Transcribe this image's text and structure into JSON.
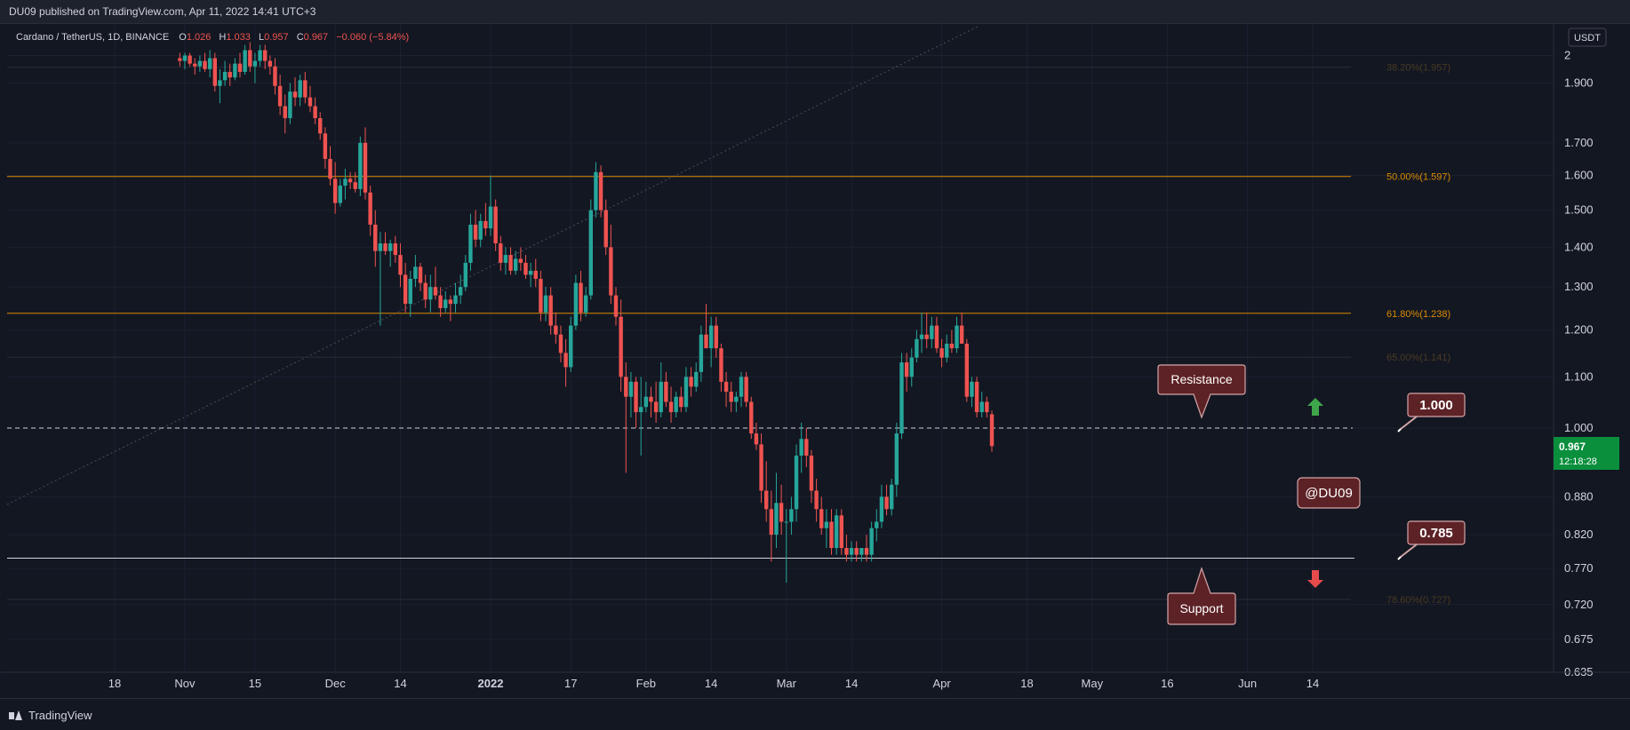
{
  "header": {
    "published": "DU09 published on TradingView.com, Apr 11, 2022 14:41 UTC+3"
  },
  "legend": {
    "symbol": "Cardano / TetherUS, 1D, BINANCE",
    "o_label": "O",
    "o_value": "1.026",
    "h_label": "H",
    "h_value": "1.033",
    "l_label": "L",
    "l_value": "0.957",
    "c_label": "C",
    "c_value": "0.967",
    "change": "−0.060 (−5.84%)"
  },
  "axis": {
    "currency": "USDT",
    "price_badge": "0.967",
    "countdown": "12:18:28"
  },
  "footer": {
    "brand": "TradingView"
  },
  "colors": {
    "background": "#131722",
    "up": "#26a69a",
    "down": "#ef5350",
    "fib": "#d98b00",
    "annotation_bg": "#5d2226",
    "annotation_border": "#d4a5a8",
    "badge_green": "#0a8f3d"
  },
  "chart_data": {
    "type": "candlestick",
    "scale": "log",
    "ylim": [
      0.635,
      2.0
    ],
    "x_ticks": [
      "18",
      "Nov",
      "15",
      "Dec",
      "14",
      "2022",
      "17",
      "Feb",
      "14",
      "Mar",
      "14",
      "Apr",
      "18",
      "May",
      "16",
      "Jun",
      "14"
    ],
    "y_ticks": [
      "2",
      "1.900",
      "1.700",
      "1.600",
      "1.500",
      "1.400",
      "1.300",
      "1.200",
      "1.100",
      "1.000",
      "0.880",
      "0.820",
      "0.770",
      "0.720",
      "0.675",
      "0.635"
    ],
    "levels": [
      {
        "label": "38.20%(1.957)",
        "value": 1.957
      },
      {
        "label": "50.00%(1.597)",
        "value": 1.597
      },
      {
        "label": "61.80%(1.238)",
        "value": 1.238
      },
      {
        "label": "65.00%(1.141)",
        "value": 1.141
      },
      {
        "label": "78.60%(0.727)",
        "value": 0.727
      }
    ],
    "horizontal_lines": [
      {
        "value": 1.0,
        "style": "dashed"
      },
      {
        "value": 0.785,
        "style": "solid"
      }
    ],
    "annotations": [
      {
        "text": "Resistance",
        "type": "callout"
      },
      {
        "text": "Support",
        "type": "callout"
      },
      {
        "text": "1.000",
        "type": "price-label"
      },
      {
        "text": "0.785",
        "type": "price-label"
      },
      {
        "text": "@DU09",
        "type": "label"
      }
    ],
    "first_date": "2021-10-25",
    "last_date": "2022-04-11",
    "candles": [
      [
        1.99,
        2.01,
        1.96,
        1.98
      ],
      [
        1.98,
        2.01,
        1.95,
        2.0
      ],
      [
        2.0,
        2.01,
        1.96,
        1.97
      ],
      [
        1.97,
        1.99,
        1.93,
        1.96
      ],
      [
        1.96,
        2.0,
        1.94,
        1.98
      ],
      [
        1.98,
        2.01,
        1.94,
        1.95
      ],
      [
        1.95,
        2.02,
        1.92,
        1.99
      ],
      [
        1.99,
        2.01,
        1.87,
        1.89
      ],
      [
        1.89,
        1.95,
        1.83,
        1.91
      ],
      [
        1.91,
        1.98,
        1.89,
        1.94
      ],
      [
        1.94,
        1.97,
        1.89,
        1.92
      ],
      [
        1.92,
        1.99,
        1.91,
        1.97
      ],
      [
        1.97,
        2.01,
        1.92,
        1.94
      ],
      [
        1.94,
        2.04,
        1.93,
        2.02
      ],
      [
        2.02,
        2.05,
        1.94,
        1.96
      ],
      [
        1.96,
        2.01,
        1.9,
        1.98
      ],
      [
        1.98,
        2.04,
        1.96,
        2.02
      ],
      [
        2.02,
        2.04,
        1.95,
        1.98
      ],
      [
        1.98,
        2.0,
        1.93,
        1.96
      ],
      [
        1.96,
        1.99,
        1.86,
        1.89
      ],
      [
        1.89,
        1.93,
        1.79,
        1.82
      ],
      [
        1.82,
        1.86,
        1.73,
        1.78
      ],
      [
        1.78,
        1.9,
        1.76,
        1.87
      ],
      [
        1.87,
        1.92,
        1.82,
        1.85
      ],
      [
        1.85,
        1.93,
        1.82,
        1.91
      ],
      [
        1.91,
        1.94,
        1.83,
        1.85
      ],
      [
        1.85,
        1.89,
        1.8,
        1.82
      ],
      [
        1.82,
        1.85,
        1.76,
        1.78
      ],
      [
        1.78,
        1.8,
        1.71,
        1.73
      ],
      [
        1.73,
        1.75,
        1.62,
        1.65
      ],
      [
        1.65,
        1.69,
        1.57,
        1.59
      ],
      [
        1.59,
        1.64,
        1.49,
        1.52
      ],
      [
        1.52,
        1.59,
        1.51,
        1.57
      ],
      [
        1.57,
        1.62,
        1.53,
        1.59
      ],
      [
        1.59,
        1.61,
        1.56,
        1.58
      ],
      [
        1.58,
        1.61,
        1.55,
        1.56
      ],
      [
        1.56,
        1.72,
        1.54,
        1.7
      ],
      [
        1.7,
        1.75,
        1.53,
        1.55
      ],
      [
        1.55,
        1.57,
        1.43,
        1.46
      ],
      [
        1.46,
        1.5,
        1.35,
        1.39
      ],
      [
        1.39,
        1.44,
        1.21,
        1.41
      ],
      [
        1.41,
        1.44,
        1.38,
        1.39
      ],
      [
        1.39,
        1.42,
        1.35,
        1.41
      ],
      [
        1.41,
        1.43,
        1.36,
        1.38
      ],
      [
        1.38,
        1.41,
        1.3,
        1.33
      ],
      [
        1.33,
        1.36,
        1.24,
        1.26
      ],
      [
        1.26,
        1.34,
        1.23,
        1.32
      ],
      [
        1.32,
        1.38,
        1.3,
        1.35
      ],
      [
        1.35,
        1.36,
        1.29,
        1.31
      ],
      [
        1.31,
        1.33,
        1.25,
        1.27
      ],
      [
        1.27,
        1.33,
        1.24,
        1.3
      ],
      [
        1.3,
        1.35,
        1.27,
        1.28
      ],
      [
        1.28,
        1.3,
        1.23,
        1.25
      ],
      [
        1.25,
        1.29,
        1.24,
        1.27
      ],
      [
        1.27,
        1.28,
        1.22,
        1.26
      ],
      [
        1.26,
        1.31,
        1.24,
        1.28
      ],
      [
        1.28,
        1.33,
        1.26,
        1.3
      ],
      [
        1.3,
        1.38,
        1.29,
        1.36
      ],
      [
        1.36,
        1.49,
        1.34,
        1.46
      ],
      [
        1.46,
        1.5,
        1.4,
        1.42
      ],
      [
        1.42,
        1.49,
        1.4,
        1.47
      ],
      [
        1.47,
        1.52,
        1.43,
        1.45
      ],
      [
        1.45,
        1.6,
        1.43,
        1.51
      ],
      [
        1.51,
        1.53,
        1.39,
        1.41
      ],
      [
        1.41,
        1.43,
        1.34,
        1.36
      ],
      [
        1.36,
        1.4,
        1.33,
        1.38
      ],
      [
        1.38,
        1.4,
        1.33,
        1.34
      ],
      [
        1.34,
        1.39,
        1.33,
        1.37
      ],
      [
        1.37,
        1.4,
        1.34,
        1.36
      ],
      [
        1.36,
        1.38,
        1.32,
        1.33
      ],
      [
        1.33,
        1.36,
        1.3,
        1.34
      ],
      [
        1.34,
        1.37,
        1.3,
        1.32
      ],
      [
        1.32,
        1.34,
        1.22,
        1.24
      ],
      [
        1.24,
        1.3,
        1.22,
        1.28
      ],
      [
        1.28,
        1.3,
        1.19,
        1.21
      ],
      [
        1.21,
        1.24,
        1.17,
        1.19
      ],
      [
        1.19,
        1.21,
        1.13,
        1.15
      ],
      [
        1.15,
        1.18,
        1.08,
        1.12
      ],
      [
        1.12,
        1.23,
        1.11,
        1.21
      ],
      [
        1.21,
        1.33,
        1.2,
        1.31
      ],
      [
        1.31,
        1.34,
        1.22,
        1.24
      ],
      [
        1.24,
        1.3,
        1.23,
        1.28
      ],
      [
        1.28,
        1.53,
        1.27,
        1.5
      ],
      [
        1.5,
        1.64,
        1.48,
        1.61
      ],
      [
        1.61,
        1.63,
        1.48,
        1.5
      ],
      [
        1.5,
        1.53,
        1.38,
        1.4
      ],
      [
        1.4,
        1.46,
        1.26,
        1.28
      ],
      [
        1.28,
        1.3,
        1.21,
        1.23
      ],
      [
        1.23,
        1.27,
        1.07,
        1.1
      ],
      [
        1.1,
        1.13,
        0.92,
        1.06
      ],
      [
        1.06,
        1.11,
        1.02,
        1.09
      ],
      [
        1.09,
        1.1,
        1.0,
        1.03
      ],
      [
        1.03,
        1.1,
        0.95,
        1.04
      ],
      [
        1.04,
        1.09,
        1.03,
        1.06
      ],
      [
        1.06,
        1.08,
        1.02,
        1.05
      ],
      [
        1.05,
        1.09,
        1.01,
        1.03
      ],
      [
        1.03,
        1.13,
        1.02,
        1.09
      ],
      [
        1.09,
        1.11,
        1.04,
        1.05
      ],
      [
        1.05,
        1.08,
        1.01,
        1.03
      ],
      [
        1.03,
        1.07,
        1.02,
        1.06
      ],
      [
        1.06,
        1.08,
        1.03,
        1.04
      ],
      [
        1.04,
        1.12,
        1.03,
        1.1
      ],
      [
        1.1,
        1.12,
        1.06,
        1.08
      ],
      [
        1.08,
        1.13,
        1.07,
        1.11
      ],
      [
        1.11,
        1.21,
        1.09,
        1.19
      ],
      [
        1.19,
        1.26,
        1.16,
        1.16
      ],
      [
        1.16,
        1.23,
        1.12,
        1.21
      ],
      [
        1.21,
        1.23,
        1.14,
        1.16
      ],
      [
        1.16,
        1.17,
        1.07,
        1.09
      ],
      [
        1.09,
        1.11,
        1.04,
        1.07
      ],
      [
        1.07,
        1.09,
        1.03,
        1.05
      ],
      [
        1.05,
        1.07,
        1.03,
        1.06
      ],
      [
        1.06,
        1.11,
        1.04,
        1.1
      ],
      [
        1.1,
        1.11,
        1.04,
        1.05
      ],
      [
        1.05,
        1.06,
        0.98,
        0.99
      ],
      [
        0.99,
        1.01,
        0.96,
        0.97
      ],
      [
        0.97,
        0.99,
        0.87,
        0.89
      ],
      [
        0.89,
        0.94,
        0.84,
        0.86
      ],
      [
        0.86,
        0.89,
        0.78,
        0.82
      ],
      [
        0.82,
        0.92,
        0.8,
        0.87
      ],
      [
        0.87,
        0.9,
        0.82,
        0.84
      ],
      [
        0.84,
        0.86,
        0.75,
        0.84
      ],
      [
        0.84,
        0.88,
        0.82,
        0.86
      ],
      [
        0.86,
        0.97,
        0.84,
        0.95
      ],
      [
        0.95,
        1.01,
        0.92,
        0.98
      ],
      [
        0.98,
        1.0,
        0.93,
        0.95
      ],
      [
        0.95,
        0.96,
        0.87,
        0.89
      ],
      [
        0.89,
        0.91,
        0.84,
        0.86
      ],
      [
        0.86,
        0.88,
        0.82,
        0.83
      ],
      [
        0.83,
        0.86,
        0.8,
        0.84
      ],
      [
        0.84,
        0.86,
        0.79,
        0.8
      ],
      [
        0.8,
        0.86,
        0.79,
        0.85
      ],
      [
        0.85,
        0.86,
        0.79,
        0.8
      ],
      [
        0.8,
        0.82,
        0.78,
        0.79
      ],
      [
        0.79,
        0.81,
        0.78,
        0.8
      ],
      [
        0.8,
        0.81,
        0.78,
        0.79
      ],
      [
        0.79,
        0.8,
        0.78,
        0.8
      ],
      [
        0.8,
        0.82,
        0.78,
        0.79
      ],
      [
        0.79,
        0.84,
        0.78,
        0.83
      ],
      [
        0.83,
        0.86,
        0.81,
        0.84
      ],
      [
        0.84,
        0.9,
        0.83,
        0.88
      ],
      [
        0.88,
        0.9,
        0.85,
        0.86
      ],
      [
        0.86,
        0.91,
        0.85,
        0.9
      ],
      [
        0.9,
        1.01,
        0.88,
        0.99
      ],
      [
        0.99,
        1.15,
        0.98,
        1.13
      ],
      [
        1.13,
        1.15,
        1.07,
        1.1
      ],
      [
        1.1,
        1.16,
        1.08,
        1.14
      ],
      [
        1.14,
        1.2,
        1.13,
        1.18
      ],
      [
        1.18,
        1.24,
        1.15,
        1.19
      ],
      [
        1.19,
        1.24,
        1.16,
        1.18
      ],
      [
        1.18,
        1.23,
        1.16,
        1.21
      ],
      [
        1.21,
        1.23,
        1.15,
        1.16
      ],
      [
        1.16,
        1.18,
        1.12,
        1.14
      ],
      [
        1.14,
        1.19,
        1.13,
        1.17
      ],
      [
        1.17,
        1.2,
        1.15,
        1.16
      ],
      [
        1.16,
        1.23,
        1.15,
        1.21
      ],
      [
        1.21,
        1.24,
        1.17,
        1.17
      ],
      [
        1.17,
        1.18,
        1.05,
        1.06
      ],
      [
        1.06,
        1.1,
        1.04,
        1.09
      ],
      [
        1.09,
        1.1,
        1.02,
        1.03
      ],
      [
        1.03,
        1.07,
        1.02,
        1.05
      ],
      [
        1.05,
        1.06,
        1.02,
        1.03
      ],
      [
        1.026,
        1.033,
        0.957,
        0.967
      ]
    ]
  }
}
